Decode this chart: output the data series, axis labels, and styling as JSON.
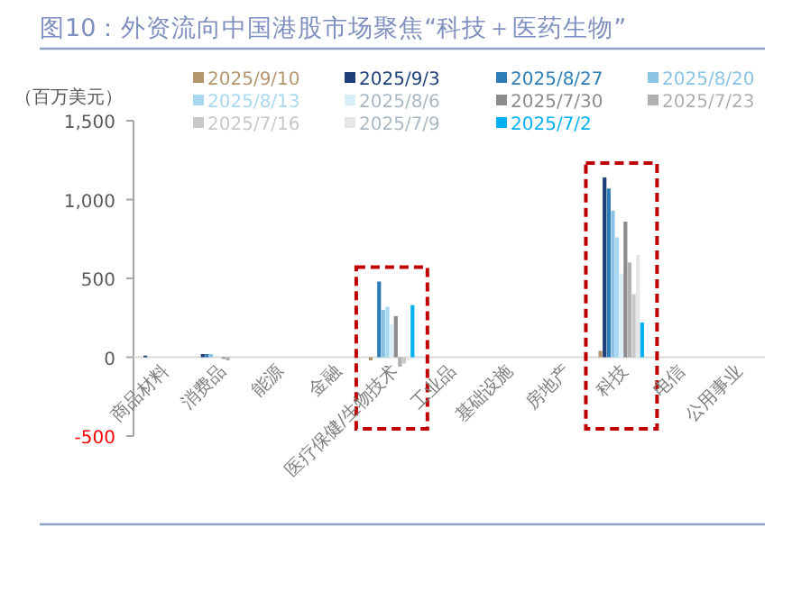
{
  "chart_data": {
    "type": "bar",
    "title": "图10：外资流向中国港股市场聚焦“科技＋医药生物”",
    "ylabel": "（百万美元）",
    "categories": [
      "商品材料",
      "消费品",
      "能源",
      "金融",
      "医疗保健/生物技术",
      "工业品",
      "基础设施",
      "房地产",
      "科技",
      "电信",
      "公用事业"
    ],
    "series": [
      {
        "name": "2025/9/10",
        "color": "#b4966e",
        "values": [
          0,
          0,
          0,
          0,
          -20,
          0,
          0,
          0,
          40,
          0,
          0
        ]
      },
      {
        "name": "2025/9/3",
        "color": "#1f3f7a",
        "values": [
          10,
          20,
          0,
          0,
          0,
          0,
          0,
          0,
          1140,
          0,
          0
        ]
      },
      {
        "name": "2025/8/27",
        "color": "#2e7db5",
        "values": [
          0,
          20,
          0,
          0,
          480,
          0,
          0,
          0,
          1070,
          0,
          0
        ]
      },
      {
        "name": "2025/8/20",
        "color": "#8cc4e6",
        "values": [
          0,
          20,
          0,
          0,
          300,
          0,
          0,
          0,
          930,
          0,
          0
        ]
      },
      {
        "name": "2025/8/13",
        "color": "#a8d8f0",
        "values": [
          0,
          0,
          0,
          0,
          320,
          0,
          0,
          0,
          760,
          0,
          0
        ]
      },
      {
        "name": "2025/8/6",
        "color": "#daeef8",
        "values": [
          0,
          0,
          0,
          0,
          210,
          0,
          0,
          0,
          530,
          0,
          0
        ]
      },
      {
        "name": "2025/7/30",
        "color": "#8c8c8c",
        "values": [
          0,
          -10,
          0,
          0,
          260,
          0,
          0,
          0,
          860,
          0,
          0
        ]
      },
      {
        "name": "2025/7/23",
        "color": "#b0b0b0",
        "values": [
          0,
          -20,
          0,
          0,
          -60,
          0,
          0,
          0,
          600,
          0,
          0
        ]
      },
      {
        "name": "2025/7/16",
        "color": "#c8c8c8",
        "values": [
          0,
          0,
          0,
          0,
          -40,
          0,
          0,
          0,
          400,
          0,
          0
        ]
      },
      {
        "name": "2025/7/9",
        "color": "#e6e6e6",
        "values": [
          0,
          0,
          0,
          null,
          -20,
          0,
          0,
          0,
          650,
          0,
          0
        ]
      },
      {
        "name": "2025/7/2",
        "color": "#00b0f0",
        "values": [
          0,
          0,
          0,
          0,
          330,
          0,
          0,
          0,
          220,
          0,
          0
        ]
      }
    ],
    "ylim": [
      -500,
      1500
    ],
    "yticks": [
      -500,
      0,
      500,
      {
        "value": 1000,
        "label": "1,000"
      },
      {
        "value": 1500,
        "label": "1,500"
      }
    ],
    "legend": "top"
  }
}
